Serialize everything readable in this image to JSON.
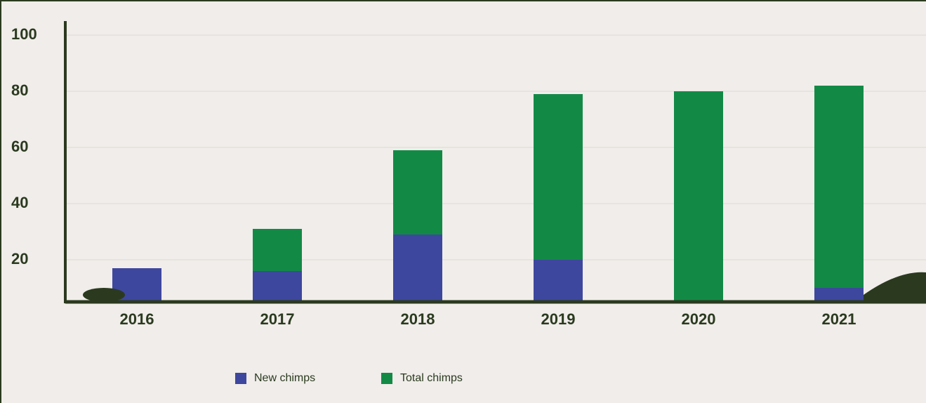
{
  "chart_data": {
    "type": "stacked_bar",
    "categories": [
      "2016",
      "2017",
      "2018",
      "2019",
      "2020",
      "2021"
    ],
    "series": [
      {
        "name": "New chimps",
        "color": "#3e479e",
        "values": [
          17,
          16,
          29,
          20,
          0,
          10
        ]
      },
      {
        "name": "Total chimps",
        "color": "#128a46",
        "values": [
          0,
          15,
          30,
          59,
          80,
          72
        ]
      }
    ],
    "ylim": [
      5,
      105
    ],
    "yticks": [
      20,
      40,
      60,
      80,
      100
    ],
    "grid": true
  }
}
